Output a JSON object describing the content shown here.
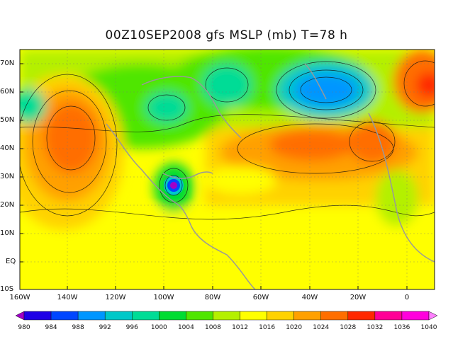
{
  "title": "00Z10SEP2008 gfs MSLP (mb) T=78 h",
  "latitude_ticks": [
    "70N",
    "60N",
    "50N",
    "40N",
    "30N",
    "20N",
    "10N",
    "EQ",
    "10S"
  ],
  "longitude_ticks": [
    "160W",
    "140W",
    "120W",
    "100W",
    "80W",
    "60W",
    "40W",
    "20W",
    "0"
  ],
  "colorbar": {
    "levels": [
      "980",
      "984",
      "988",
      "992",
      "996",
      "1000",
      "1004",
      "1008",
      "1012",
      "1016",
      "1020",
      "1024",
      "1028",
      "1032",
      "1036",
      "1040"
    ],
    "colors": [
      "#a000c8",
      "#1e00e6",
      "#0046ff",
      "#0096ff",
      "#00c8c8",
      "#00dc96",
      "#00dc32",
      "#50e600",
      "#b4f000",
      "#ffff00",
      "#ffd200",
      "#ffa000",
      "#ff6e00",
      "#ff2800",
      "#ff0096",
      "#ff00dc",
      "#ff80ff"
    ]
  },
  "map_features": {
    "pressure_field": "MSLP (mb)",
    "contour_interval": "4 mb",
    "highs": [
      "North Pacific High",
      "Azores High",
      "Subtropical Atlantic ridge"
    ],
    "lows": [
      "Hurricane over Gulf of Mexico",
      "Low south of Greenland",
      "Low over Hudson Bay",
      "Low near Alaska"
    ]
  }
}
